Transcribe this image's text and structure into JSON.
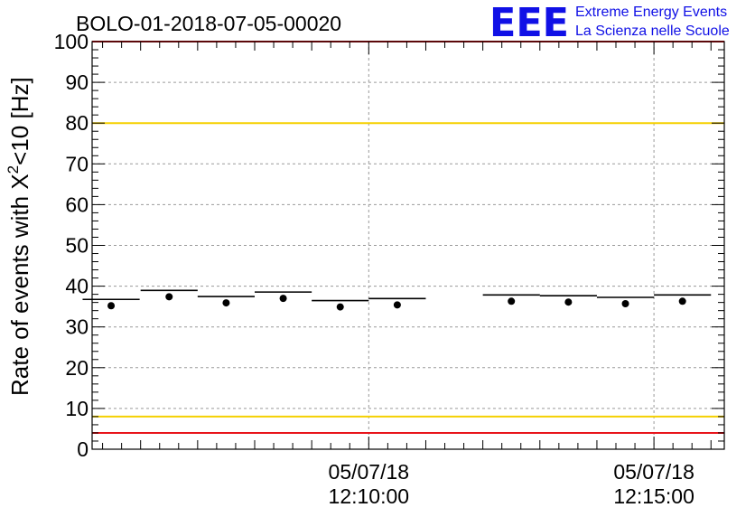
{
  "chart_data": {
    "type": "scatter",
    "title": "BOLO-01-2018-07-05-00020",
    "ylabel": "Rate of events with X²<10 [Hz]",
    "ylabel_parts": {
      "pre": "Rate of events with X",
      "sup": "2",
      "post": "<10 [Hz]"
    },
    "xlabel": "",
    "ylim": [
      0,
      100
    ],
    "xlim": [
      "12:05:09",
      "12:16:14"
    ],
    "y_ticks": [
      "0",
      "10",
      "20",
      "30",
      "40",
      "50",
      "60",
      "70",
      "80",
      "90",
      "100"
    ],
    "x_ticks": [
      {
        "t": "12:10:00",
        "line1": "05/07/18",
        "line2": "12:10:00"
      },
      {
        "t": "12:15:00",
        "line1": "05/07/18",
        "line2": "12:15:00"
      }
    ],
    "grid": true,
    "bin_width_seconds": 60,
    "points": [
      {
        "t": "12:05:29",
        "y": 35.2
      },
      {
        "t": "12:06:30",
        "y": 37.4
      },
      {
        "t": "12:07:30",
        "y": 35.9
      },
      {
        "t": "12:08:30",
        "y": 37.0
      },
      {
        "t": "12:09:30",
        "y": 34.9
      },
      {
        "t": "12:10:30",
        "y": 35.4
      },
      {
        "t": "12:12:30",
        "y": 36.3
      },
      {
        "t": "12:13:30",
        "y": 36.1
      },
      {
        "t": "12:14:30",
        "y": 35.7
      },
      {
        "t": "12:15:30",
        "y": 36.3
      }
    ],
    "reference_lines": [
      {
        "y": 100,
        "color": "#e8141b"
      },
      {
        "y": 80,
        "color": "#f5d000"
      },
      {
        "y": 8,
        "color": "#f5d000"
      },
      {
        "y": 4,
        "color": "#e8141b"
      }
    ]
  },
  "logo": {
    "mark": "EEE",
    "line1": "Extreme Energy Events",
    "line2": "La Scienza nelle Scuole",
    "color": "#1010e6"
  }
}
